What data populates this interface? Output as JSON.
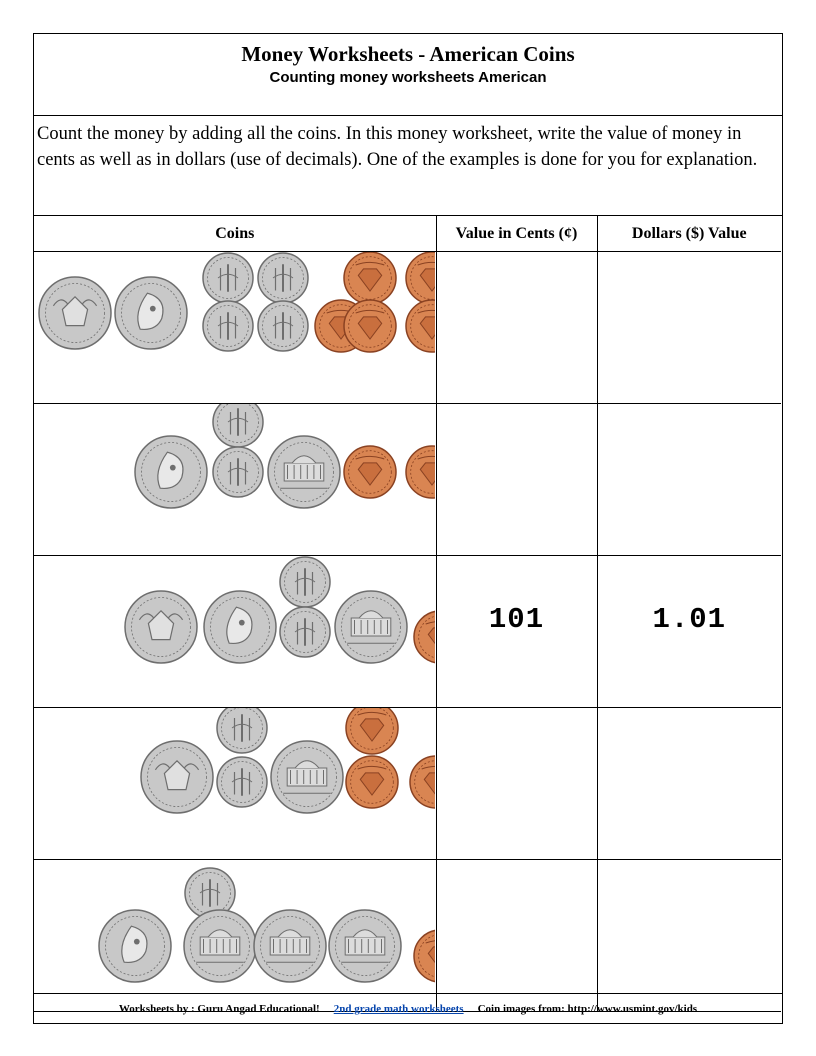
{
  "header": {
    "title": "Money Worksheets - American Coins",
    "subtitle": "Counting money worksheets American"
  },
  "instructions": "Count the money by adding all the coins. In this money worksheet, write the value of money in cents as well as in dollars (use of decimals). One of the examples is done for you for explanation.",
  "table": {
    "columns": [
      "Coins",
      "Value in Cents (¢)",
      "Dollars ($) Value"
    ],
    "rows": [
      {
        "coins": [
          "half-dollar",
          "quarter",
          "dime",
          "dime",
          "dime",
          "dime",
          "penny",
          "penny",
          "penny",
          "penny",
          "penny"
        ],
        "cents": "",
        "dollars": ""
      },
      {
        "coins": [
          "quarter",
          "dime",
          "dime",
          "nickel",
          "penny",
          "penny"
        ],
        "cents": "",
        "dollars": ""
      },
      {
        "coins": [
          "half-dollar",
          "quarter",
          "dime",
          "dime",
          "nickel",
          "penny"
        ],
        "cents": "101",
        "dollars": "1.01"
      },
      {
        "coins": [
          "half-dollar",
          "dime",
          "dime",
          "nickel",
          "penny",
          "penny",
          "penny"
        ],
        "cents": "",
        "dollars": ""
      },
      {
        "coins": [
          "quarter",
          "dime",
          "nickel",
          "nickel",
          "nickel",
          "penny"
        ],
        "cents": "",
        "dollars": ""
      }
    ]
  },
  "footer": {
    "credit": "Worksheets by : Guru Angad Educational!",
    "link_text": "2nd grade math worksheets",
    "source": "Coin images from: http://www.usmint.gov/kids"
  },
  "colors": {
    "silver": "#c8c8c8",
    "silver_dark": "#6e6e6e",
    "copper": "#d98552",
    "copper_dark": "#8a4222",
    "link": "#0645ad"
  }
}
